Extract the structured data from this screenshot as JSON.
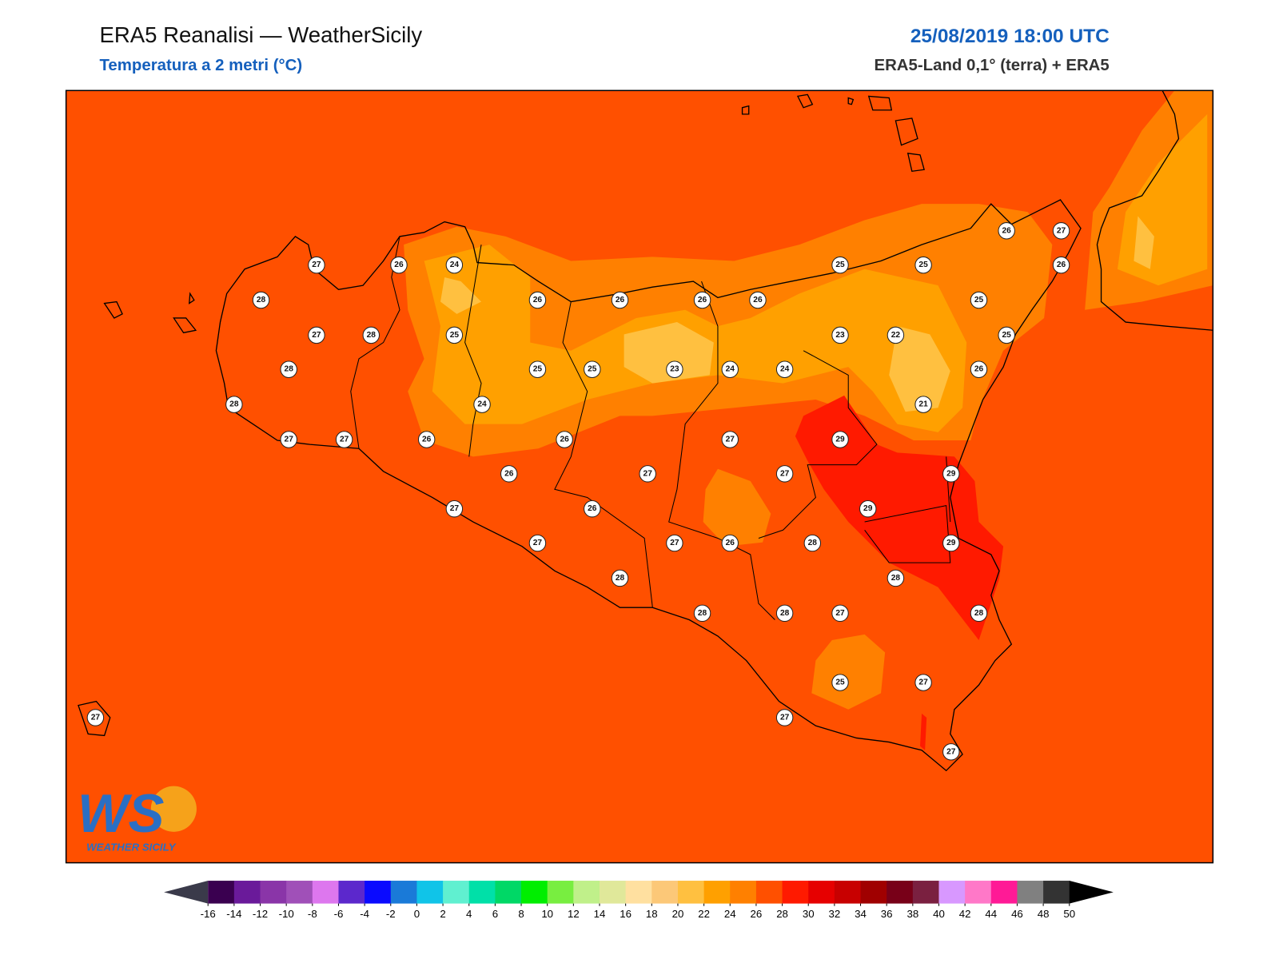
{
  "header": {
    "title": "ERA5 Reanalisi — WeatherSicily",
    "subtitle": "Temperatura a 2 metri (°C)",
    "datetime": "25/08/2019 18:00 UTC",
    "source": "ERA5-Land 0,1° (terra) + ERA5"
  },
  "stations": [
    27,
    26,
    24,
    28,
    26,
    26,
    26,
    26,
    27,
    28,
    25,
    28,
    25,
    25,
    23,
    24,
    24,
    28,
    24,
    27,
    27,
    26,
    26,
    27,
    29,
    26,
    27,
    27,
    27,
    26,
    29,
    27,
    27,
    26,
    28,
    29,
    28,
    28,
    28,
    28,
    27,
    28,
    25,
    27,
    27,
    27,
    27,
    26,
    27,
    25,
    25,
    26,
    25,
    23,
    22,
    25,
    26,
    21,
    29
  ],
  "logo": {
    "mark": "WS",
    "caption": "WEATHER SICILY"
  },
  "colorbar": {
    "ticks": [
      -16,
      -14,
      -12,
      -10,
      -8,
      -6,
      -4,
      -2,
      0,
      2,
      4,
      6,
      8,
      10,
      12,
      14,
      16,
      18,
      20,
      22,
      24,
      26,
      28,
      30,
      32,
      34,
      36,
      38,
      40,
      42,
      44,
      46,
      48,
      50
    ],
    "colors": [
      "#3a0050",
      "#6a1a9a",
      "#8a35a8",
      "#a050b8",
      "#dd77ee",
      "#5c28cc",
      "#0a0aff",
      "#1a7ad8",
      "#10c4e8",
      "#60f0d0",
      "#00e0a8",
      "#00d866",
      "#00ee00",
      "#78ee40",
      "#c0f08a",
      "#e0e89a",
      "#ffe0a0",
      "#fcc878",
      "#ffc040",
      "#ffa000",
      "#ff8000",
      "#ff5000",
      "#ff1a00",
      "#e60000",
      "#c80000",
      "#a00000",
      "#780018",
      "#7a2040",
      "#d898ff",
      "#ff78c8",
      "#ff1a96",
      "#808080",
      "#333333"
    ],
    "under_color": "#3a3a4a",
    "over_color": "#000000"
  }
}
